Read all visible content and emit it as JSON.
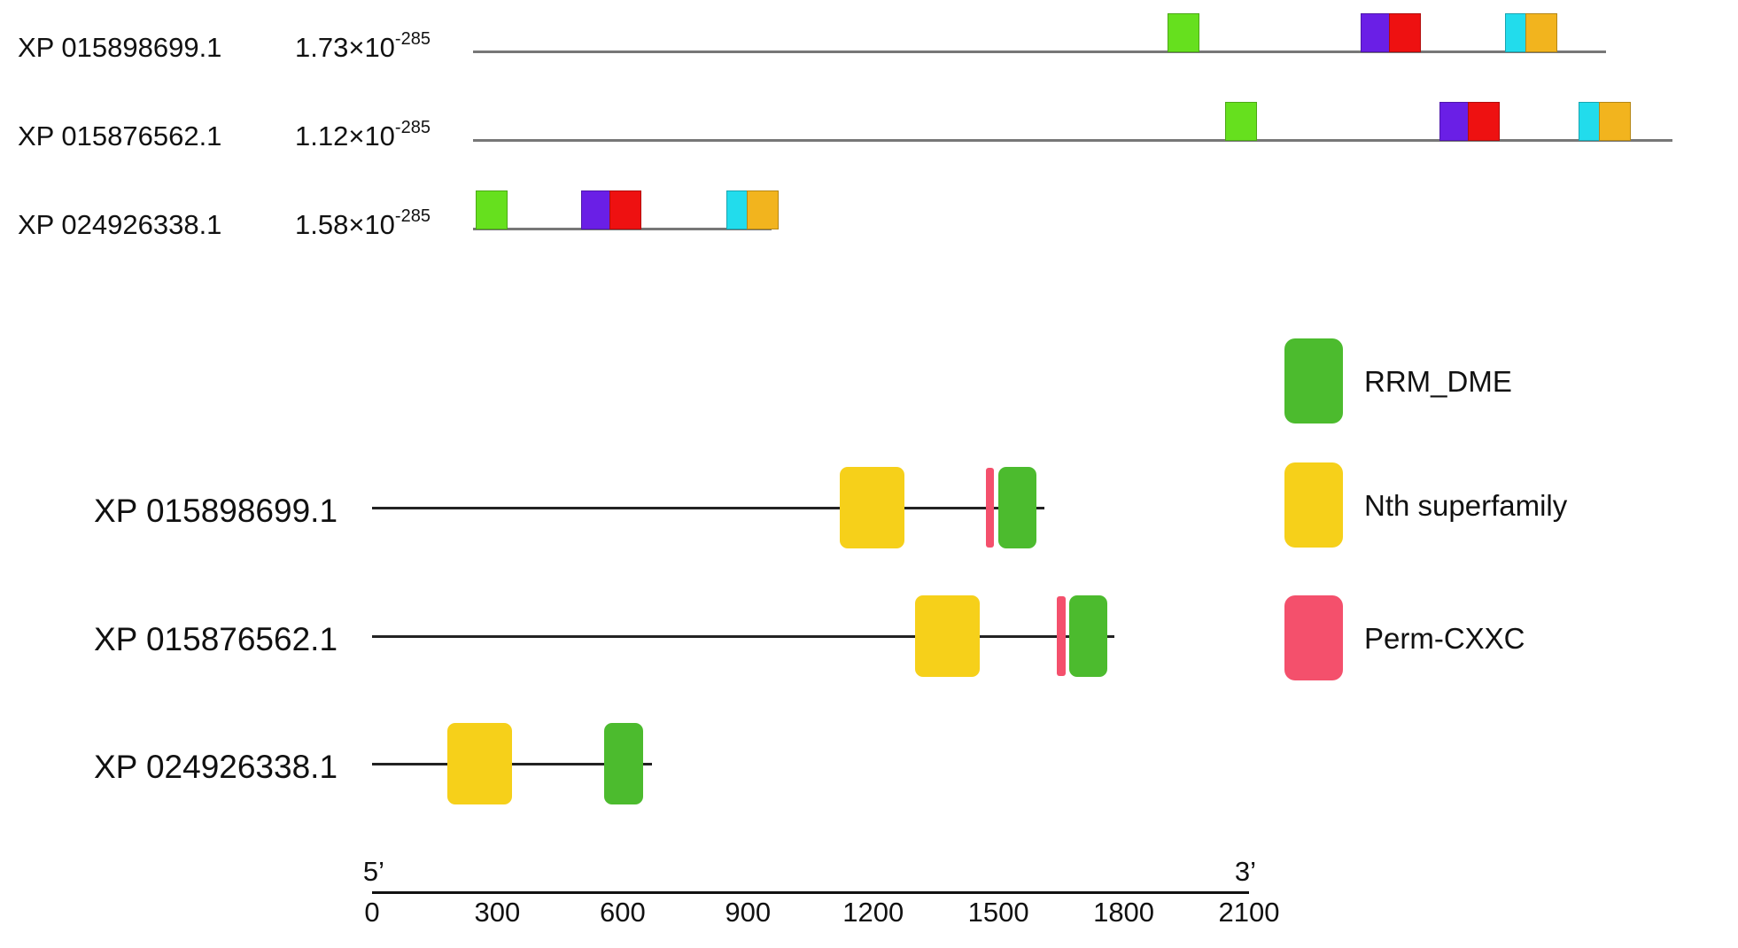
{
  "motif_rows": [
    {
      "id": "XP 015898699.1",
      "evalue_base": "1.73×10",
      "evalue_exp": "-285",
      "motifs": [
        {
          "pos": 1140,
          "color": "#66e01e"
        },
        {
          "pos": 1458,
          "color": "#6a1fe6"
        },
        {
          "pos": 1504,
          "color": "#ee1111"
        },
        {
          "pos": 1694,
          "color": "#22dcec"
        },
        {
          "pos": 1728,
          "color": "#f2b41e"
        }
      ],
      "length": 1860
    },
    {
      "id": "XP 015876562.1",
      "evalue_base": "1.12×10",
      "evalue_exp": "-285",
      "motifs": [
        {
          "pos": 1235,
          "color": "#66e01e"
        },
        {
          "pos": 1587,
          "color": "#6a1fe6"
        },
        {
          "pos": 1633,
          "color": "#ee1111"
        },
        {
          "pos": 1815,
          "color": "#22dcec"
        },
        {
          "pos": 1849,
          "color": "#f2b41e"
        }
      ],
      "length": 1970
    },
    {
      "id": "XP 024926338.1",
      "evalue_base": "1.58×10",
      "evalue_exp": "-285",
      "motifs": [
        {
          "pos": 4,
          "color": "#66e01e"
        },
        {
          "pos": 178,
          "color": "#6a1fe6"
        },
        {
          "pos": 224,
          "color": "#ee1111"
        },
        {
          "pos": 416,
          "color": "#22dcec"
        },
        {
          "pos": 450,
          "color": "#f2b41e"
        }
      ],
      "length": 490
    }
  ],
  "domain_rows": [
    {
      "id": "XP 015898699.1",
      "length": 1610,
      "domains": [
        {
          "type": "Nth superfamily",
          "start": 1120,
          "end": 1275
        },
        {
          "type": "Perm-CXXC",
          "start": 1470,
          "end": 1490
        },
        {
          "type": "RRM_DME",
          "start": 1500,
          "end": 1590
        }
      ]
    },
    {
      "id": "XP 015876562.1",
      "length": 1777,
      "domains": [
        {
          "type": "Nth superfamily",
          "start": 1300,
          "end": 1455
        },
        {
          "type": "Perm-CXXC",
          "start": 1640,
          "end": 1660
        },
        {
          "type": "RRM_DME",
          "start": 1670,
          "end": 1760
        }
      ]
    },
    {
      "id": "XP 024926338.1",
      "length": 670,
      "domains": [
        {
          "type": "Nth superfamily",
          "start": 180,
          "end": 335
        },
        {
          "type": "RRM_DME",
          "start": 555,
          "end": 650
        }
      ]
    }
  ],
  "legend": [
    {
      "label": "RRM_DME",
      "color": "#4cbb2e"
    },
    {
      "label": "Nth superfamily",
      "color": "#f6d01a"
    },
    {
      "label": "Perm-CXXC",
      "color": "#f4506c"
    }
  ],
  "axis": {
    "left_label": "5’",
    "right_label": "3’",
    "min": 0,
    "max": 2100,
    "ticks": [
      "0",
      "300",
      "600",
      "900",
      "1200",
      "1500",
      "1800",
      "2100"
    ]
  }
}
